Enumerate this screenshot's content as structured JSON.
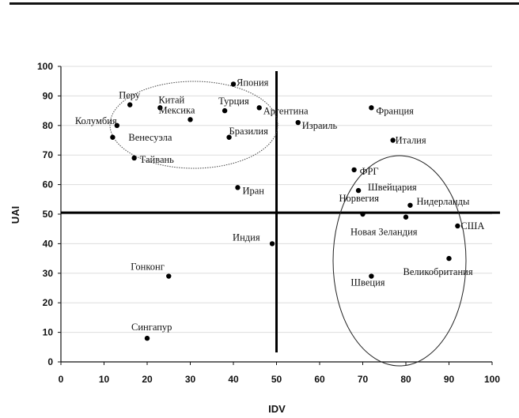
{
  "chart_data": {
    "type": "scatter",
    "title": "",
    "xlabel": "IDV",
    "ylabel": "UAI",
    "xlim": [
      0,
      100
    ],
    "ylim": [
      0,
      100
    ],
    "xticks": [
      "0",
      "10",
      "20",
      "30",
      "40",
      "50",
      "60",
      "70",
      "80",
      "90",
      "100"
    ],
    "yticks": [
      "0",
      "10",
      "20",
      "30",
      "40",
      "50",
      "60",
      "70",
      "80",
      "90",
      "100"
    ],
    "grid": true,
    "reference_lines": {
      "x": 50,
      "y": 50.5
    },
    "points": [
      {
        "label": "Япония",
        "x": 40,
        "y": 94,
        "lx": 4,
        "ly": -2
      },
      {
        "label": "Перу",
        "x": 16,
        "y": 87,
        "lx": -14,
        "ly": -12
      },
      {
        "label": "Китай",
        "x": 23,
        "y": 86,
        "lx": -2,
        "ly": -10
      },
      {
        "label": "Турция",
        "x": 38,
        "y": 85,
        "lx": -8,
        "ly": -12
      },
      {
        "label": "Мексика",
        "x": 30,
        "y": 82,
        "lx": -40,
        "ly": -12
      },
      {
        "label": "Аргентина",
        "x": 46,
        "y": 86,
        "lx": 5,
        "ly": 4
      },
      {
        "label": "Колумбия",
        "x": 13,
        "y": 80,
        "lx": -53,
        "ly": -6
      },
      {
        "label": "Венесуэла",
        "x": 12,
        "y": 76,
        "lx": 20,
        "ly": 0
      },
      {
        "label": "Тайвань",
        "x": 17,
        "y": 69,
        "lx": 7,
        "ly": 2
      },
      {
        "label": "Бразилия",
        "x": 39,
        "y": 76,
        "lx": 0,
        "ly": -8
      },
      {
        "label": "Иран",
        "x": 41,
        "y": 59,
        "lx": 6,
        "ly": 4
      },
      {
        "label": "Франция",
        "x": 72,
        "y": 86,
        "lx": 6,
        "ly": 4
      },
      {
        "label": "Израиль",
        "x": 55,
        "y": 81,
        "lx": 5,
        "ly": 4
      },
      {
        "label": "Италия",
        "x": 77,
        "y": 75,
        "lx": 3,
        "ly": 0
      },
      {
        "label": "ФРГ",
        "x": 68,
        "y": 65,
        "lx": 7,
        "ly": 2
      },
      {
        "label": "Швейцария",
        "x": 69,
        "y": 58,
        "lx": 12,
        "ly": -4
      },
      {
        "label": "Норвегия",
        "x": 70,
        "y": 50,
        "lx": -30,
        "ly": -20
      },
      {
        "label": "Нидерланды",
        "x": 81,
        "y": 53,
        "lx": 8,
        "ly": -5
      },
      {
        "label": "Новая Зеландия",
        "x": 80,
        "y": 49,
        "lx": -70,
        "ly": 19
      },
      {
        "label": "США",
        "x": 92,
        "y": 46,
        "lx": 4,
        "ly": 0
      },
      {
        "label": "Великобритания",
        "x": 90,
        "y": 35,
        "lx": -58,
        "ly": 17
      },
      {
        "label": "Швеция",
        "x": 72,
        "y": 29,
        "lx": -26,
        "ly": 8
      },
      {
        "label": "Индия",
        "x": 49,
        "y": 40,
        "lx": -50,
        "ly": -8
      },
      {
        "label": "Гонконг",
        "x": 25,
        "y": 29,
        "lx": -48,
        "ly": -12
      },
      {
        "label": "Сингапур",
        "x": 20,
        "y": 8,
        "lx": -20,
        "ly": -14
      }
    ]
  }
}
